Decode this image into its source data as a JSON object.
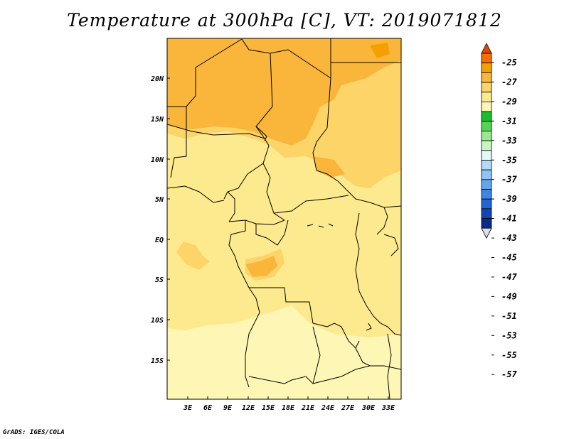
{
  "title": "Temperature at 300hPa [C], VT: 2019071812",
  "credit": "GrADS: IGES/COLA",
  "map": {
    "lat_labels": [
      "20N",
      "15N",
      "10N",
      "5N",
      "EQ",
      "5S",
      "10S",
      "15S"
    ],
    "lon_labels": [
      "3E",
      "6E",
      "9E",
      "12E",
      "15E",
      "18E",
      "21E",
      "24E",
      "27E",
      "30E",
      "33E"
    ],
    "lon_range": [
      1.5,
      35
    ],
    "lat_range": [
      -19.5,
      25
    ]
  },
  "legend": {
    "labels": [
      "-25",
      "-27",
      "-29",
      "-31",
      "-33",
      "-35",
      "-37",
      "-39",
      "-41",
      "-43",
      "-45",
      "-47",
      "-49",
      "-51",
      "-53",
      "-55",
      "-57"
    ],
    "colors": [
      "#e44500",
      "#f76d00",
      "#f6a000",
      "#f9b63a",
      "#fcd468",
      "#fdea8e",
      "#fdf6b4",
      "#1ebd2f",
      "#55d451",
      "#9ae890",
      "#c8f5c2",
      "#e4f9f7",
      "#b4daf7",
      "#8fc4f5",
      "#63a6ee",
      "#3c86e6",
      "#2165d4",
      "#1346b3",
      "#0a2b8c",
      "#0c1375"
    ]
  }
}
